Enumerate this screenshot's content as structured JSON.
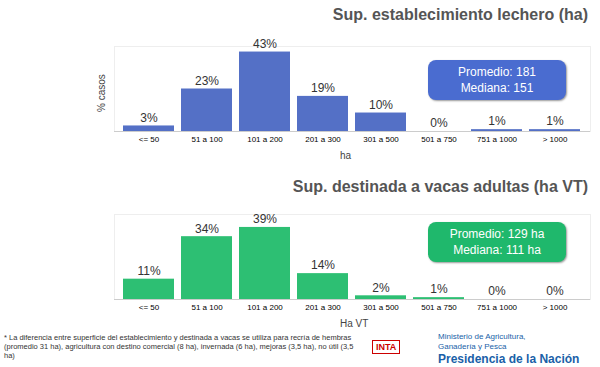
{
  "chart_data": [
    {
      "type": "bar",
      "title": "Sup. establecimiento lechero (ha)",
      "categories": [
        "<= 50",
        "51 a 100",
        "101 a 200",
        "201 a 300",
        "301 a 500",
        "501 a 750",
        "751 a 1000",
        "> 1000"
      ],
      "values": [
        3,
        23,
        43,
        19,
        10,
        0,
        1,
        1
      ],
      "value_labels": [
        "3%",
        "23%",
        "43%",
        "19%",
        "10%",
        "0%",
        "1%",
        "1%"
      ],
      "color": "#5470c6",
      "ylim": [
        0,
        46
      ],
      "x_label": "ha",
      "y_label": "% casos",
      "annotations": [
        "Promedio: 181",
        "Mediana: 151"
      ],
      "data_labels": true,
      "tick_labels": "x",
      "grid": false
    },
    {
      "type": "bar",
      "title": "Sup. destinada a vacas adultas (ha VT)",
      "categories": [
        "<= 50",
        "51 a 100",
        "101 a 200",
        "201 a 300",
        "301 a 500",
        "501 a 750",
        "751 a 1000",
        "> 1000"
      ],
      "values": [
        11,
        34,
        39,
        14,
        2,
        1,
        0,
        0
      ],
      "value_labels": [
        "11%",
        "34%",
        "39%",
        "14%",
        "2%",
        "1%",
        "0%",
        "0%"
      ],
      "color": "#2dbf73",
      "ylim": [
        0,
        46
      ],
      "x_label": "Ha VT",
      "annotations": [
        "Promedio: 129 ha",
        "Mediana: 111 ha"
      ],
      "data_labels": true,
      "tick_labels": "x",
      "grid": false
    }
  ],
  "footnote": "* La diferencia entre superficie del establecimiento y destinada a vacas se utiliza para recría de hembras (promedio 31 ha), agricultura con destino comercial (8 ha), invernada (6 ha), mejoras (3,5 ha), no útil (3,5 ha)",
  "logos": {
    "inta": "INTA",
    "ministry": [
      "Ministerio de Agricultura,",
      "Ganadería y Pesca"
    ],
    "presidency": "Presidencia de la Nación"
  }
}
